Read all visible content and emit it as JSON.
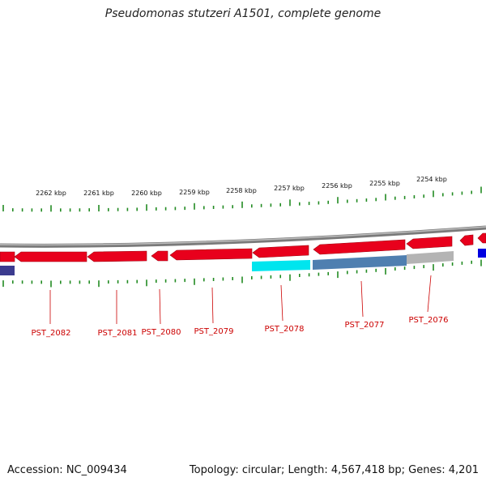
{
  "title": "Pseudomonas stutzeri A1501, complete genome",
  "accession": "Accession: NC_009434",
  "topology": "Topology: circular; Length: 4,567,418 bp; Genes: 4,201",
  "scale": {
    "tick_color": "#228b22",
    "labels": [
      "2262 kbp",
      "2261 kbp",
      "2260 kbp",
      "2259 kbp",
      "2258 kbp",
      "2257 kbp",
      "2256 kbp",
      "2255 kbp",
      "2254 kbp"
    ]
  },
  "colors": {
    "backbone": "#8a8a8a",
    "gene_red": "#e8001c",
    "cyan": "#00e5ee",
    "steel_blue": "#4f7fb0",
    "grey": "#b4b4b4",
    "navy": "#3b3b8f",
    "blue": "#0000e0",
    "label_red": "#cc0000"
  },
  "genes": [
    "PST_2082",
    "PST_2081",
    "PST_2080",
    "PST_2079",
    "PST_2078",
    "PST_2077",
    "PST_2076"
  ]
}
